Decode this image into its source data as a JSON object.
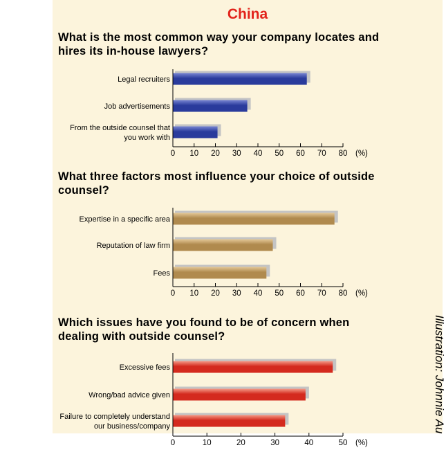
{
  "title": "China",
  "credit": "Illustration: Johnnie Au",
  "chart_data": [
    {
      "type": "bar",
      "orientation": "horizontal",
      "title": "What is the most common way your company locates and hires its in-house lawyers?",
      "categories": [
        "Legal recruiters",
        "Job advertisements",
        "From the outside counsel that you work with"
      ],
      "category_lines": [
        [
          "Legal recruiters"
        ],
        [
          "Job advertisements"
        ],
        [
          "From the outside counsel that",
          "you work with"
        ]
      ],
      "values": [
        63,
        35,
        21
      ],
      "xlim": [
        0,
        80
      ],
      "xticks": [
        0,
        10,
        20,
        30,
        40,
        50,
        60,
        70,
        80
      ],
      "unit": "(%)",
      "color": "#2a3b9c",
      "highlight": "#7886d2",
      "grid": false
    },
    {
      "type": "bar",
      "orientation": "horizontal",
      "title": "What three factors most influence your choice of outside counsel?",
      "categories": [
        "Expertise in a specific area",
        "Reputation of law firm",
        "Fees"
      ],
      "category_lines": [
        [
          "Expertise in a specific area"
        ],
        [
          "Reputation of law firm"
        ],
        [
          "Fees"
        ]
      ],
      "values": [
        76,
        47,
        44
      ],
      "xlim": [
        0,
        80
      ],
      "xticks": [
        0,
        10,
        20,
        30,
        40,
        50,
        60,
        70,
        80
      ],
      "unit": "(%)",
      "color": "#b08a4e",
      "highlight": "#e4c898",
      "grid": false
    },
    {
      "type": "bar",
      "orientation": "horizontal",
      "title": "Which issues have you found to be of concern when dealing with outside counsel?",
      "categories": [
        "Excessive fees",
        "Wrong/bad advice given",
        "Failure to completely understand our business/company"
      ],
      "category_lines": [
        [
          "Excessive fees"
        ],
        [
          "Wrong/bad advice given"
        ],
        [
          "Failure to completely understand",
          "our business/company"
        ]
      ],
      "values": [
        47,
        39,
        33
      ],
      "xlim": [
        0,
        50
      ],
      "xticks": [
        0,
        10,
        20,
        30,
        40,
        50
      ],
      "unit": "(%)",
      "color": "#d42a1e",
      "highlight": "#f49a88",
      "grid": false
    }
  ]
}
